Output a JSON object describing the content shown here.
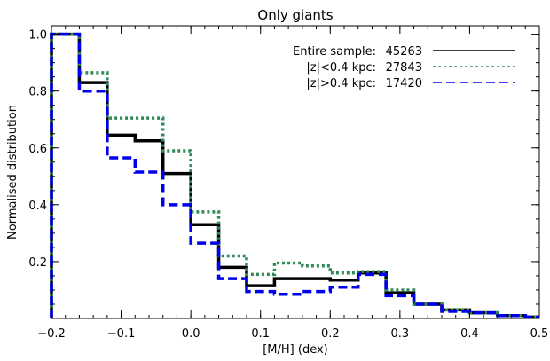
{
  "chart_data": {
    "type": "line",
    "step": true,
    "title": "Only giants",
    "xlabel": "[M/H] (dex)",
    "ylabel": "Normalised distribution",
    "xlim": [
      -0.2,
      0.5
    ],
    "ylim": [
      0.0,
      1.03
    ],
    "xticks": [
      -0.2,
      -0.1,
      0.0,
      0.1,
      0.2,
      0.3,
      0.4,
      0.5
    ],
    "xtick_labels": [
      "−0.2",
      "−0.1",
      "0.0",
      "0.1",
      "0.2",
      "0.3",
      "0.4",
      "0.5"
    ],
    "yticks": [
      0.2,
      0.4,
      0.6,
      0.8,
      1.0
    ],
    "ytick_labels": [
      "0.2",
      "0.4",
      "0.6",
      "0.8",
      "1.0"
    ],
    "bin_edges": [
      -0.2,
      -0.16,
      -0.12,
      -0.08,
      -0.04,
      0.0,
      0.04,
      0.08,
      0.12,
      0.16,
      0.2,
      0.24,
      0.28,
      0.32,
      0.36,
      0.4,
      0.44,
      0.48,
      0.5
    ],
    "series": [
      {
        "name": "Entire sample:",
        "count": "45263",
        "color": "#000000",
        "dash": "",
        "width": 3.5,
        "values": [
          1.0,
          0.83,
          0.645,
          0.625,
          0.51,
          0.33,
          0.18,
          0.115,
          0.14,
          0.14,
          0.135,
          0.16,
          0.09,
          0.05,
          0.03,
          0.02,
          0.01,
          0.005
        ]
      },
      {
        "name": "|z|<0.4 kpc:",
        "count": "27843",
        "color": "#2e8b57",
        "dash": "3,3",
        "width": 3.5,
        "values": [
          1.0,
          0.865,
          0.705,
          0.705,
          0.59,
          0.375,
          0.22,
          0.155,
          0.195,
          0.185,
          0.16,
          0.165,
          0.1,
          0.05,
          0.03,
          0.02,
          0.01,
          0.005
        ]
      },
      {
        "name": "|z|>0.4 kpc:",
        "count": "17420",
        "color": "#0000ee",
        "dash": "10,5",
        "width": 3.5,
        "values": [
          1.0,
          0.8,
          0.565,
          0.515,
          0.4,
          0.265,
          0.14,
          0.095,
          0.085,
          0.095,
          0.11,
          0.155,
          0.08,
          0.05,
          0.025,
          0.02,
          0.01,
          0.005
        ]
      }
    ]
  }
}
